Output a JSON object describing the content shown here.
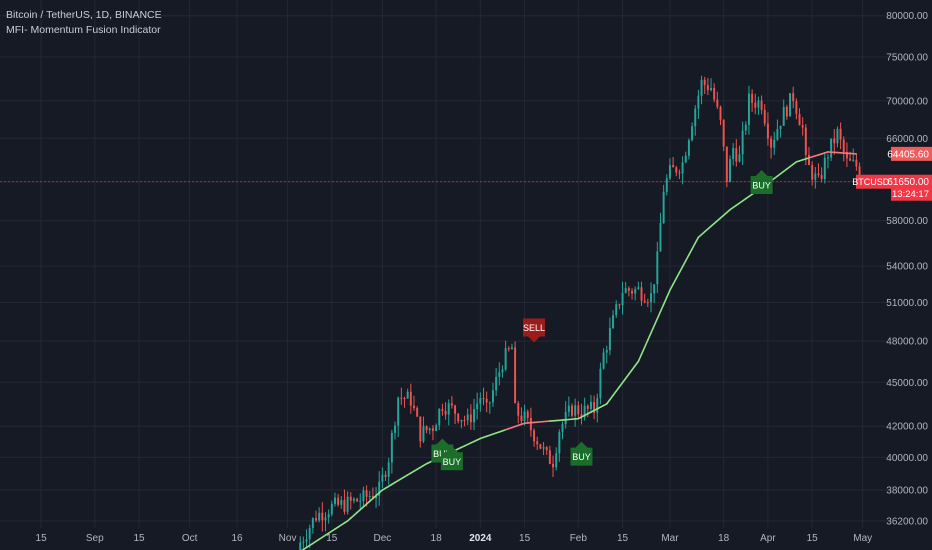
{
  "header": {
    "symbol_line": "Bitcoin / TetherUS, 1D, BINANCE",
    "indicator_line": "MFI- Momentum Fusion Indicator"
  },
  "colors": {
    "background": "#161a25",
    "grid": "#232834",
    "text": "#b2b5be",
    "up": "#26a69a",
    "down": "#ef5350",
    "ma_up": "#8fe388",
    "ma_down": "#f07b7b",
    "buy_bg": "#1b6d2a",
    "sell_bg": "#9c1c1c",
    "price_line": "#f23645",
    "price_label_bg": "#f23645",
    "ma_label_bg": "#f05b5b"
  },
  "chart_data": {
    "type": "candlestick",
    "scale": "log",
    "ylim": [
      35800,
      82000
    ],
    "xlim_dates": [
      "2023-08-02",
      "2024-05-09"
    ],
    "y_ticks": [
      36200,
      38000,
      40000,
      42000,
      45000,
      48000,
      51000,
      54000,
      58000,
      61650,
      66000,
      70000,
      75000,
      80000
    ],
    "y_tick_labels": [
      "36200.00",
      "38000.00",
      "40000.00",
      "42000.00",
      "45000.00",
      "48000.00",
      "51000.00",
      "54000.00",
      "58000.00",
      "61650.00",
      "66000.00",
      "70000.00",
      "75000.00",
      "80000.00"
    ],
    "x_ticks": [
      {
        "label": "15",
        "date": "2023-08-15"
      },
      {
        "label": "Sep",
        "date": "2023-09-01"
      },
      {
        "label": "15",
        "date": "2023-09-15"
      },
      {
        "label": "Oct",
        "date": "2023-10-01"
      },
      {
        "label": "16",
        "date": "2023-10-16"
      },
      {
        "label": "Nov",
        "date": "2023-11-01"
      },
      {
        "label": "15",
        "date": "2023-11-15"
      },
      {
        "label": "Dec",
        "date": "2023-12-01"
      },
      {
        "label": "18",
        "date": "2023-12-18"
      },
      {
        "label": "2024",
        "date": "2024-01-01",
        "bold": true
      },
      {
        "label": "15",
        "date": "2024-01-15"
      },
      {
        "label": "Feb",
        "date": "2024-02-01"
      },
      {
        "label": "15",
        "date": "2024-02-15"
      },
      {
        "label": "Mar",
        "date": "2024-03-01"
      },
      {
        "label": "18",
        "date": "2024-03-18"
      },
      {
        "label": "Apr",
        "date": "2024-04-01"
      },
      {
        "label": "15",
        "date": "2024-04-15"
      },
      {
        "label": "May",
        "date": "2024-05-01"
      }
    ],
    "price_anchors": [
      [
        "2023-11-05",
        35000
      ],
      [
        "2023-11-10",
        36500
      ],
      [
        "2023-11-15",
        37000
      ],
      [
        "2023-11-20",
        37200
      ],
      [
        "2023-11-25",
        37500
      ],
      [
        "2023-11-30",
        38000
      ],
      [
        "2023-12-03",
        40000
      ],
      [
        "2023-12-06",
        44000
      ],
      [
        "2023-12-10",
        43800
      ],
      [
        "2023-12-13",
        41500
      ],
      [
        "2023-12-17",
        42000
      ],
      [
        "2023-12-20",
        43500
      ],
      [
        "2023-12-24",
        43000
      ],
      [
        "2023-12-28",
        42300
      ],
      [
        "2024-01-01",
        44000
      ],
      [
        "2024-01-03",
        43000
      ],
      [
        "2024-01-08",
        46500
      ],
      [
        "2024-01-11",
        47500
      ],
      [
        "2024-01-12",
        43000
      ],
      [
        "2024-01-15",
        42500
      ],
      [
        "2024-01-18",
        41500
      ],
      [
        "2024-01-22",
        40000
      ],
      [
        "2024-01-24",
        39800
      ],
      [
        "2024-01-26",
        41800
      ],
      [
        "2024-01-30",
        43200
      ],
      [
        "2024-02-02",
        43000
      ],
      [
        "2024-02-06",
        43100
      ],
      [
        "2024-02-09",
        47000
      ],
      [
        "2024-02-12",
        49500
      ],
      [
        "2024-02-15",
        52000
      ],
      [
        "2024-02-20",
        52000
      ],
      [
        "2024-02-24",
        51500
      ],
      [
        "2024-02-26",
        54500
      ],
      [
        "2024-02-28",
        61000
      ],
      [
        "2024-03-01",
        62500
      ],
      [
        "2024-03-05",
        63500
      ],
      [
        "2024-03-08",
        68000
      ],
      [
        "2024-03-11",
        72000
      ],
      [
        "2024-03-14",
        71500
      ],
      [
        "2024-03-17",
        67500
      ],
      [
        "2024-03-19",
        62000
      ],
      [
        "2024-03-21",
        65000
      ],
      [
        "2024-03-23",
        64000
      ],
      [
        "2024-03-26",
        70000
      ],
      [
        "2024-03-30",
        69800
      ],
      [
        "2024-04-02",
        65500
      ],
      [
        "2024-04-05",
        68000
      ],
      [
        "2024-04-09",
        70500
      ],
      [
        "2024-04-12",
        67000
      ],
      [
        "2024-04-13",
        63500
      ],
      [
        "2024-04-17",
        61500
      ],
      [
        "2024-04-20",
        64500
      ],
      [
        "2024-04-23",
        66500
      ],
      [
        "2024-04-26",
        63500
      ],
      [
        "2024-04-29",
        63200
      ],
      [
        "2024-05-01",
        61650
      ]
    ],
    "ma_anchors": [
      [
        "2023-11-05",
        34500
      ],
      [
        "2023-11-20",
        36200
      ],
      [
        "2023-12-01",
        38000
      ],
      [
        "2023-12-15",
        39600
      ],
      [
        "2024-01-01",
        41200
      ],
      [
        "2024-01-15",
        42200
      ],
      [
        "2024-02-01",
        42500
      ],
      [
        "2024-02-10",
        43500
      ],
      [
        "2024-02-20",
        46500
      ],
      [
        "2024-03-01",
        52000
      ],
      [
        "2024-03-10",
        56500
      ],
      [
        "2024-03-20",
        59000
      ],
      [
        "2024-04-01",
        61500
      ],
      [
        "2024-04-10",
        63600
      ],
      [
        "2024-04-20",
        64600
      ],
      [
        "2024-04-29",
        64400
      ]
    ],
    "ma_down_dates": [
      [
        "2024-01-10",
        "2024-01-23"
      ],
      [
        "2024-04-15",
        "2024-05-01"
      ]
    ],
    "signals": [
      {
        "type": "buy",
        "date": "2023-12-20",
        "price": 41200,
        "label": "BUY"
      },
      {
        "type": "buy",
        "date": "2023-12-23",
        "price": 40700,
        "label": "BUY"
      },
      {
        "type": "buy",
        "date": "2024-02-02",
        "price": 41000,
        "label": "BUY"
      },
      {
        "type": "buy",
        "date": "2024-03-30",
        "price": 62800,
        "label": "BUY"
      },
      {
        "type": "sell",
        "date": "2024-01-18",
        "price": 47900,
        "label": "SELL"
      }
    ],
    "price_labels": [
      {
        "label": "BTCUSDT",
        "kind": "symbol",
        "price": 61650
      },
      {
        "label": "64405.60",
        "kind": "ma",
        "price": 64405.6
      },
      {
        "label": "61650.00",
        "kind": "last",
        "price": 61650
      },
      {
        "label": "13:24:17",
        "kind": "countdown",
        "price": 61650
      }
    ]
  }
}
